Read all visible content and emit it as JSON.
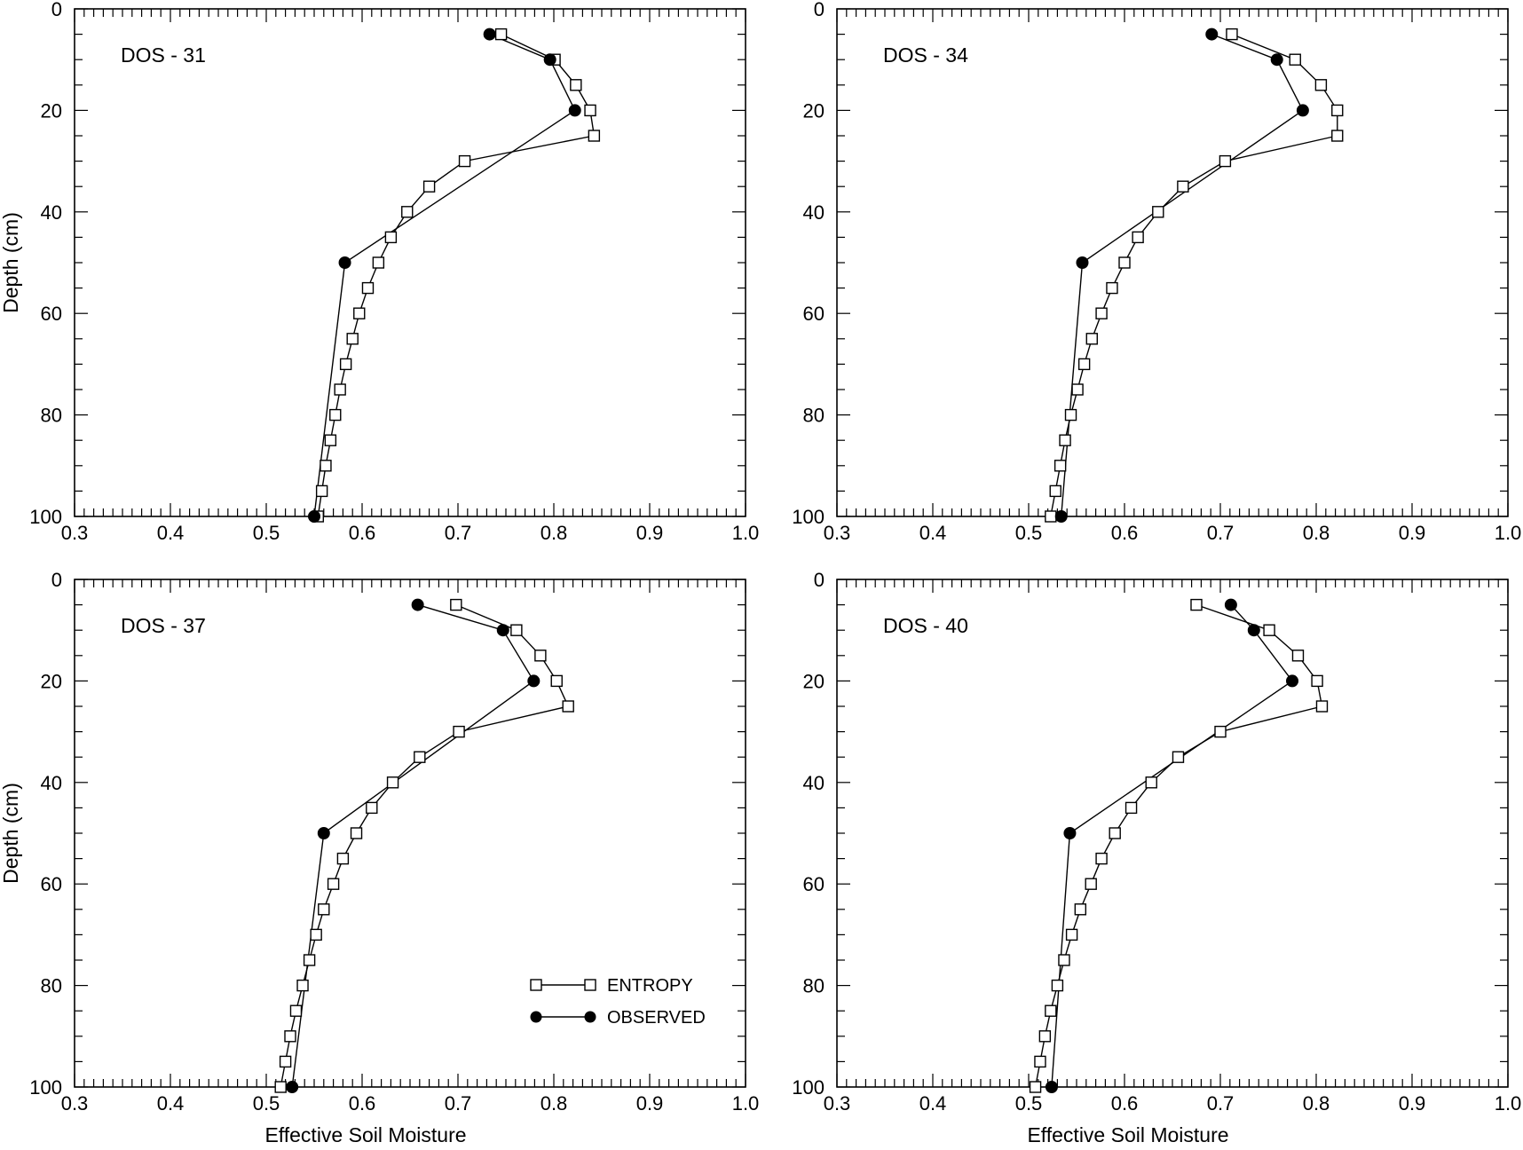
{
  "chart_data": [
    {
      "type": "line",
      "panel_label": "DOS - 31",
      "xlabel": "",
      "ylabel": "Depth (cm)",
      "xlim": [
        0.3,
        1.0
      ],
      "ylim": [
        0,
        100
      ],
      "y_inverted": true,
      "xticks": [
        "0.3",
        "0.4",
        "0.5",
        "0.6",
        "0.7",
        "0.8",
        "0.9",
        "1.0"
      ],
      "yticks": [
        "0",
        "20",
        "40",
        "60",
        "80",
        "100"
      ],
      "series": [
        {
          "name": "ENTROPY",
          "marker": "open-square",
          "points": [
            {
              "x": 0.745,
              "y": 5
            },
            {
              "x": 0.801,
              "y": 10
            },
            {
              "x": 0.823,
              "y": 15
            },
            {
              "x": 0.838,
              "y": 20
            },
            {
              "x": 0.842,
              "y": 25
            },
            {
              "x": 0.707,
              "y": 30
            },
            {
              "x": 0.67,
              "y": 35
            },
            {
              "x": 0.647,
              "y": 40
            },
            {
              "x": 0.63,
              "y": 45
            },
            {
              "x": 0.617,
              "y": 50
            },
            {
              "x": 0.606,
              "y": 55
            },
            {
              "x": 0.597,
              "y": 60
            },
            {
              "x": 0.59,
              "y": 65
            },
            {
              "x": 0.583,
              "y": 70
            },
            {
              "x": 0.577,
              "y": 75
            },
            {
              "x": 0.572,
              "y": 80
            },
            {
              "x": 0.567,
              "y": 85
            },
            {
              "x": 0.562,
              "y": 90
            },
            {
              "x": 0.558,
              "y": 95
            },
            {
              "x": 0.554,
              "y": 100
            }
          ]
        },
        {
          "name": "OBSERVED",
          "marker": "filled-circle",
          "points": [
            {
              "x": 0.733,
              "y": 5
            },
            {
              "x": 0.796,
              "y": 10
            },
            {
              "x": 0.822,
              "y": 20
            },
            {
              "x": 0.582,
              "y": 50
            },
            {
              "x": 0.55,
              "y": 100
            }
          ]
        }
      ]
    },
    {
      "type": "line",
      "panel_label": "DOS - 34",
      "xlabel": "",
      "ylabel": "",
      "xlim": [
        0.3,
        1.0
      ],
      "ylim": [
        0,
        100
      ],
      "y_inverted": true,
      "xticks": [
        "0.3",
        "0.4",
        "0.5",
        "0.6",
        "0.7",
        "0.8",
        "0.9",
        "1.0"
      ],
      "yticks": [
        "0",
        "20",
        "40",
        "60",
        "80",
        "100"
      ],
      "series": [
        {
          "name": "ENTROPY",
          "marker": "open-square",
          "points": [
            {
              "x": 0.712,
              "y": 5
            },
            {
              "x": 0.778,
              "y": 10
            },
            {
              "x": 0.805,
              "y": 15
            },
            {
              "x": 0.822,
              "y": 20
            },
            {
              "x": 0.822,
              "y": 25
            },
            {
              "x": 0.705,
              "y": 30
            },
            {
              "x": 0.661,
              "y": 35
            },
            {
              "x": 0.635,
              "y": 40
            },
            {
              "x": 0.614,
              "y": 45
            },
            {
              "x": 0.6,
              "y": 50
            },
            {
              "x": 0.587,
              "y": 55
            },
            {
              "x": 0.576,
              "y": 60
            },
            {
              "x": 0.566,
              "y": 65
            },
            {
              "x": 0.558,
              "y": 70
            },
            {
              "x": 0.551,
              "y": 75
            },
            {
              "x": 0.544,
              "y": 80
            },
            {
              "x": 0.538,
              "y": 85
            },
            {
              "x": 0.533,
              "y": 90
            },
            {
              "x": 0.528,
              "y": 95
            },
            {
              "x": 0.523,
              "y": 100
            }
          ]
        },
        {
          "name": "OBSERVED",
          "marker": "filled-circle",
          "points": [
            {
              "x": 0.691,
              "y": 5
            },
            {
              "x": 0.759,
              "y": 10
            },
            {
              "x": 0.786,
              "y": 20
            },
            {
              "x": 0.556,
              "y": 50
            },
            {
              "x": 0.534,
              "y": 100
            }
          ]
        }
      ]
    },
    {
      "type": "line",
      "panel_label": "DOS - 37",
      "xlabel": "Effective Soil Moisture",
      "ylabel": "Depth (cm)",
      "xlim": [
        0.3,
        1.0
      ],
      "ylim": [
        0,
        100
      ],
      "y_inverted": true,
      "xticks": [
        "0.3",
        "0.4",
        "0.5",
        "0.6",
        "0.7",
        "0.8",
        "0.9",
        "1.0"
      ],
      "yticks": [
        "0",
        "20",
        "40",
        "60",
        "80",
        "100"
      ],
      "legend": {
        "position": "bottom-right",
        "entries": [
          "ENTROPY",
          "OBSERVED"
        ]
      },
      "series": [
        {
          "name": "ENTROPY",
          "marker": "open-square",
          "points": [
            {
              "x": 0.698,
              "y": 5
            },
            {
              "x": 0.761,
              "y": 10
            },
            {
              "x": 0.786,
              "y": 15
            },
            {
              "x": 0.803,
              "y": 20
            },
            {
              "x": 0.815,
              "y": 25
            },
            {
              "x": 0.701,
              "y": 30
            },
            {
              "x": 0.66,
              "y": 35
            },
            {
              "x": 0.632,
              "y": 40
            },
            {
              "x": 0.61,
              "y": 45
            },
            {
              "x": 0.594,
              "y": 50
            },
            {
              "x": 0.58,
              "y": 55
            },
            {
              "x": 0.57,
              "y": 60
            },
            {
              "x": 0.56,
              "y": 65
            },
            {
              "x": 0.552,
              "y": 70
            },
            {
              "x": 0.545,
              "y": 75
            },
            {
              "x": 0.538,
              "y": 80
            },
            {
              "x": 0.531,
              "y": 85
            },
            {
              "x": 0.525,
              "y": 90
            },
            {
              "x": 0.52,
              "y": 95
            },
            {
              "x": 0.515,
              "y": 100
            }
          ]
        },
        {
          "name": "OBSERVED",
          "marker": "filled-circle",
          "points": [
            {
              "x": 0.658,
              "y": 5
            },
            {
              "x": 0.747,
              "y": 10
            },
            {
              "x": 0.779,
              "y": 20
            },
            {
              "x": 0.56,
              "y": 50
            },
            {
              "x": 0.527,
              "y": 100
            }
          ]
        }
      ]
    },
    {
      "type": "line",
      "panel_label": "DOS - 40",
      "xlabel": "Effective Soil Moisture",
      "ylabel": "",
      "xlim": [
        0.3,
        1.0
      ],
      "ylim": [
        0,
        100
      ],
      "y_inverted": true,
      "xticks": [
        "0.3",
        "0.4",
        "0.5",
        "0.6",
        "0.7",
        "0.8",
        "0.9",
        "1.0"
      ],
      "yticks": [
        "0",
        "20",
        "40",
        "60",
        "80",
        "100"
      ],
      "series": [
        {
          "name": "ENTROPY",
          "marker": "open-square",
          "points": [
            {
              "x": 0.675,
              "y": 5
            },
            {
              "x": 0.751,
              "y": 10
            },
            {
              "x": 0.781,
              "y": 15
            },
            {
              "x": 0.801,
              "y": 20
            },
            {
              "x": 0.806,
              "y": 25
            },
            {
              "x": 0.7,
              "y": 30
            },
            {
              "x": 0.656,
              "y": 35
            },
            {
              "x": 0.628,
              "y": 40
            },
            {
              "x": 0.607,
              "y": 45
            },
            {
              "x": 0.59,
              "y": 50
            },
            {
              "x": 0.576,
              "y": 55
            },
            {
              "x": 0.565,
              "y": 60
            },
            {
              "x": 0.554,
              "y": 65
            },
            {
              "x": 0.545,
              "y": 70
            },
            {
              "x": 0.537,
              "y": 75
            },
            {
              "x": 0.53,
              "y": 80
            },
            {
              "x": 0.523,
              "y": 85
            },
            {
              "x": 0.517,
              "y": 90
            },
            {
              "x": 0.512,
              "y": 95
            },
            {
              "x": 0.507,
              "y": 100
            }
          ]
        },
        {
          "name": "OBSERVED",
          "marker": "filled-circle",
          "points": [
            {
              "x": 0.711,
              "y": 5
            },
            {
              "x": 0.735,
              "y": 10
            },
            {
              "x": 0.775,
              "y": 20
            },
            {
              "x": 0.543,
              "y": 50
            },
            {
              "x": 0.524,
              "y": 100
            }
          ]
        }
      ]
    }
  ]
}
